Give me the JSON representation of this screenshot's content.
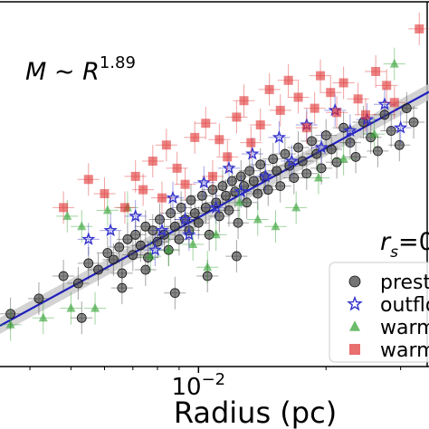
{
  "chart_data": {
    "type": "scatter",
    "title": "",
    "xlabel": "Radius (pc)",
    "ylabel": "",
    "xscale": "log",
    "yscale": "log",
    "xlim": [
      0.0034,
      0.035
    ],
    "ylim": [
      0.01,
      10
    ],
    "x_tick_labels": [
      {
        "value": 0.01,
        "base": "10",
        "exp": "−2"
      }
    ],
    "annotations": {
      "relation_main": "M ∼ R",
      "relation_exp": "1.89",
      "rs_main": "r",
      "rs_sub": "s",
      "rs_value": "=0"
    },
    "fit": {
      "slope": 1.89,
      "x": [
        0.0034,
        0.035
      ],
      "y": [
        0.0216,
        1.77
      ],
      "color": "#1f1fbf",
      "band_color": "#c8c8c8"
    },
    "legend_position": "right",
    "series": [
      {
        "name": "preste",
        "marker": "circle",
        "color": "#3a3a3a",
        "points": [
          [
            0.0036,
            0.027
          ],
          [
            0.0042,
            0.036
          ],
          [
            0.0048,
            0.055
          ],
          [
            0.0052,
            0.048
          ],
          [
            0.0055,
            0.07
          ],
          [
            0.0058,
            0.062
          ],
          [
            0.0061,
            0.085
          ],
          [
            0.0063,
            0.075
          ],
          [
            0.0065,
            0.095
          ],
          [
            0.0066,
            0.058
          ],
          [
            0.0068,
            0.11
          ],
          [
            0.007,
            0.082
          ],
          [
            0.0071,
            0.12
          ],
          [
            0.0073,
            0.098
          ],
          [
            0.0075,
            0.14
          ],
          [
            0.0076,
            0.078
          ],
          [
            0.0078,
            0.13
          ],
          [
            0.008,
            0.105
          ],
          [
            0.0081,
            0.16
          ],
          [
            0.0083,
            0.12
          ],
          [
            0.0085,
            0.09
          ],
          [
            0.0086,
            0.18
          ],
          [
            0.0088,
            0.14
          ],
          [
            0.009,
            0.11
          ],
          [
            0.0091,
            0.2
          ],
          [
            0.0093,
            0.16
          ],
          [
            0.0095,
            0.13
          ],
          [
            0.0096,
            0.23
          ],
          [
            0.0098,
            0.18
          ],
          [
            0.01,
            0.15
          ],
          [
            0.0102,
            0.25
          ],
          [
            0.0104,
            0.2
          ],
          [
            0.0106,
            0.12
          ],
          [
            0.0108,
            0.28
          ],
          [
            0.011,
            0.22
          ],
          [
            0.0112,
            0.17
          ],
          [
            0.0114,
            0.3
          ],
          [
            0.0116,
            0.25
          ],
          [
            0.0118,
            0.19
          ],
          [
            0.012,
            0.33
          ],
          [
            0.0122,
            0.27
          ],
          [
            0.0124,
            0.15
          ],
          [
            0.0126,
            0.36
          ],
          [
            0.0128,
            0.3
          ],
          [
            0.013,
            0.22
          ],
          [
            0.0132,
            0.4
          ],
          [
            0.0135,
            0.33
          ],
          [
            0.0138,
            0.26
          ],
          [
            0.014,
            0.45
          ],
          [
            0.0143,
            0.36
          ],
          [
            0.0146,
            0.28
          ],
          [
            0.015,
            0.5
          ],
          [
            0.0153,
            0.4
          ],
          [
            0.0156,
            0.3
          ],
          [
            0.016,
            0.55
          ],
          [
            0.0164,
            0.44
          ],
          [
            0.0168,
            0.35
          ],
          [
            0.0172,
            0.62
          ],
          [
            0.0176,
            0.48
          ],
          [
            0.018,
            0.38
          ],
          [
            0.0185,
            0.7
          ],
          [
            0.019,
            0.55
          ],
          [
            0.0195,
            0.42
          ],
          [
            0.02,
            0.78
          ],
          [
            0.0206,
            0.6
          ],
          [
            0.0212,
            0.47
          ],
          [
            0.022,
            0.9
          ],
          [
            0.0228,
            0.68
          ],
          [
            0.0235,
            0.52
          ],
          [
            0.0245,
            1.0
          ],
          [
            0.0255,
            0.75
          ],
          [
            0.0265,
            0.58
          ],
          [
            0.0275,
            1.15
          ],
          [
            0.0285,
            0.85
          ],
          [
            0.0298,
            0.65
          ],
          [
            0.031,
            1.3
          ],
          [
            0.0322,
            1.0
          ],
          [
            0.0105,
            0.055
          ],
          [
            0.0088,
            0.04
          ],
          [
            0.0123,
            0.08
          ],
          [
            0.0075,
            0.062
          ],
          [
            0.0066,
            0.044
          ],
          [
            0.0053,
            0.025
          ]
        ]
      },
      {
        "name": "outflow",
        "marker": "star",
        "color": "#3333cc",
        "points": [
          [
            0.0055,
            0.11
          ],
          [
            0.0062,
            0.13
          ],
          [
            0.0071,
            0.17
          ],
          [
            0.0079,
            0.09
          ],
          [
            0.0087,
            0.24
          ],
          [
            0.0095,
            0.12
          ],
          [
            0.0103,
            0.32
          ],
          [
            0.011,
            0.2
          ],
          [
            0.0118,
            0.42
          ],
          [
            0.0126,
            0.27
          ],
          [
            0.0134,
            0.55
          ],
          [
            0.0144,
            0.36
          ],
          [
            0.0155,
            0.75
          ],
          [
            0.0166,
            0.48
          ],
          [
            0.018,
            0.95
          ],
          [
            0.0195,
            0.62
          ],
          [
            0.021,
            1.25
          ],
          [
            0.0228,
            0.85
          ],
          [
            0.025,
            1.05
          ],
          [
            0.0275,
            1.4
          ],
          [
            0.03,
            0.9
          ],
          [
            0.0093,
            0.16
          ],
          [
            0.0082,
            0.13
          ]
        ]
      },
      {
        "name": "warm",
        "marker": "triangle",
        "color": "#2ea02e",
        "points": [
          [
            0.0036,
            0.022
          ],
          [
            0.0043,
            0.025
          ],
          [
            0.005,
            0.03
          ],
          [
            0.0057,
            0.03
          ],
          [
            0.0049,
            0.17
          ],
          [
            0.0053,
            0.14
          ],
          [
            0.0061,
            0.19
          ],
          [
            0.0068,
            0.2
          ],
          [
            0.0077,
            0.08
          ],
          [
            0.0085,
            0.09
          ],
          [
            0.0097,
            0.1
          ],
          [
            0.011,
            0.12
          ],
          [
            0.0125,
            0.22
          ],
          [
            0.0138,
            0.16
          ],
          [
            0.0152,
            0.14
          ],
          [
            0.017,
            0.2
          ],
          [
            0.0192,
            0.35
          ],
          [
            0.022,
            0.5
          ],
          [
            0.026,
            0.8
          ],
          [
            0.029,
            3.0
          ],
          [
            0.0105,
            0.065
          ]
        ]
      },
      {
        "name": "warma",
        "marker": "square",
        "color": "#e03030",
        "points": [
          [
            0.0048,
            0.2
          ],
          [
            0.0055,
            0.34
          ],
          [
            0.006,
            0.26
          ],
          [
            0.0067,
            0.2
          ],
          [
            0.0071,
            0.36
          ],
          [
            0.0074,
            0.28
          ],
          [
            0.0078,
            0.48
          ],
          [
            0.0084,
            0.65
          ],
          [
            0.0089,
            0.42
          ],
          [
            0.0093,
            0.31
          ],
          [
            0.0098,
            0.75
          ],
          [
            0.0104,
            0.98
          ],
          [
            0.0112,
            0.72
          ],
          [
            0.0117,
            0.52
          ],
          [
            0.0123,
            1.1
          ],
          [
            0.0128,
            1.5
          ],
          [
            0.0133,
            0.68
          ],
          [
            0.014,
            0.95
          ],
          [
            0.0147,
            1.85
          ],
          [
            0.0156,
            1.25
          ],
          [
            0.0163,
            2.2
          ],
          [
            0.0172,
            1.6
          ],
          [
            0.018,
            0.9
          ],
          [
            0.0188,
            1.3
          ],
          [
            0.0194,
            2.4
          ],
          [
            0.0205,
            1.75
          ],
          [
            0.0212,
            1.2
          ],
          [
            0.022,
            2.1
          ],
          [
            0.0238,
            1.55
          ],
          [
            0.0248,
            1.15
          ],
          [
            0.0262,
            2.6
          ],
          [
            0.0278,
            2.0
          ],
          [
            0.029,
            1.45
          ],
          [
            0.0332,
            5.8
          ],
          [
            0.0108,
            0.36
          ],
          [
            0.0082,
            0.24
          ]
        ]
      }
    ]
  }
}
